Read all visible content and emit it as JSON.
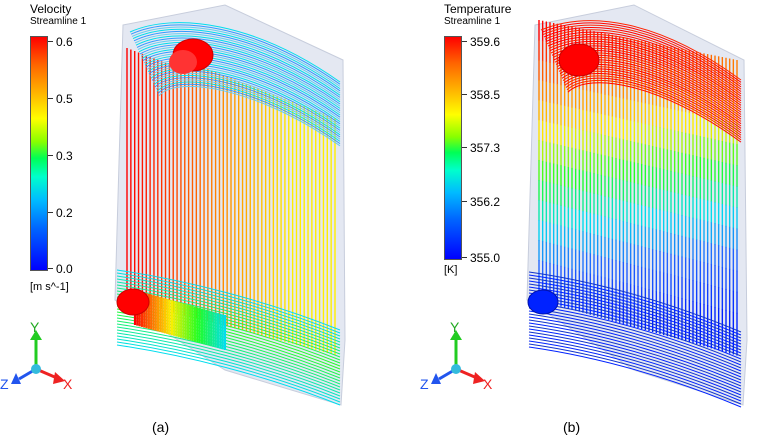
{
  "panels": [
    {
      "label": "(a)",
      "legend": {
        "title": "Velocity",
        "subtitle": "Streamline 1",
        "ticks": [
          "0.6",
          "0.5",
          "0.3",
          "0.2",
          "0.0"
        ],
        "unit": "[m s^-1]"
      }
    },
    {
      "label": "(b)",
      "legend": {
        "title": "Temperature",
        "subtitle": "Streamline 1",
        "ticks": [
          "359.6",
          "358.5",
          "357.3",
          "356.2",
          "355.0"
        ],
        "unit": "[K]"
      }
    }
  ],
  "axes": {
    "y": "Y",
    "z": "Z",
    "x": "X"
  },
  "colors": {
    "red": "#ff0000",
    "orange": "#ff8800",
    "yellow": "#ffee00",
    "green": "#22ff22",
    "cyan": "#00ddee",
    "blue": "#0022ff",
    "housing": "#e4e8f2",
    "axis_y": "#22cc22",
    "axis_x": "#ee2222",
    "axis_z": "#2255ee",
    "axis_origin": "#33bbdd"
  }
}
